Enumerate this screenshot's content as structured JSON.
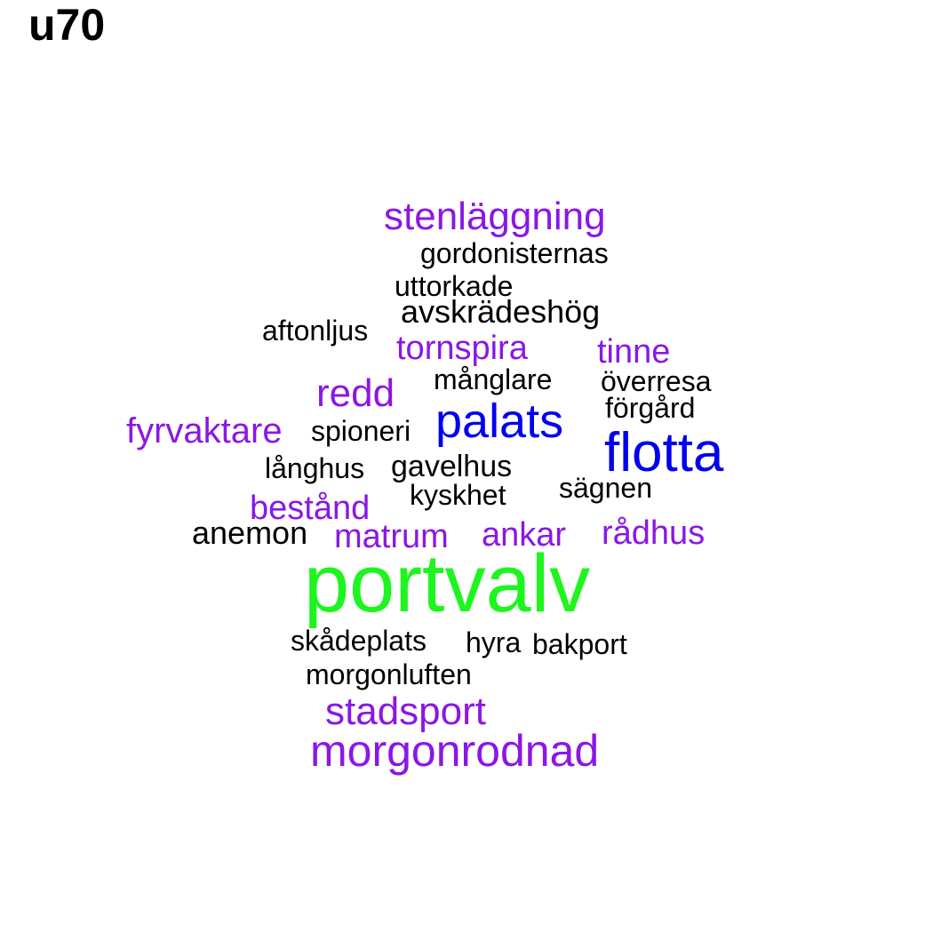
{
  "chart_data": {
    "type": "wordcloud",
    "title": "u70",
    "colors": {
      "black": "#000000",
      "purple": "#8a17e6",
      "blue": "#0000ee",
      "green": "#1ef51e"
    },
    "words": [
      {
        "text": "portvalv",
        "weight": 10,
        "color": "green"
      },
      {
        "text": "flotta",
        "weight": 6,
        "color": "blue"
      },
      {
        "text": "palats",
        "weight": 6,
        "color": "blue"
      },
      {
        "text": "morgonrodnad",
        "weight": 5,
        "color": "purple"
      },
      {
        "text": "stenläggning",
        "weight": 4,
        "color": "purple"
      },
      {
        "text": "redd",
        "weight": 4,
        "color": "purple"
      },
      {
        "text": "stadsport",
        "weight": 4,
        "color": "purple"
      },
      {
        "text": "fyrvaktare",
        "weight": 4,
        "color": "purple"
      },
      {
        "text": "tornspira",
        "weight": 3,
        "color": "purple"
      },
      {
        "text": "tinne",
        "weight": 3,
        "color": "purple"
      },
      {
        "text": "bestånd",
        "weight": 3,
        "color": "purple"
      },
      {
        "text": "matrum",
        "weight": 3,
        "color": "purple"
      },
      {
        "text": "ankar",
        "weight": 3,
        "color": "purple"
      },
      {
        "text": "rådhus",
        "weight": 3,
        "color": "purple"
      },
      {
        "text": "avskrädeshög",
        "weight": 2,
        "color": "black"
      },
      {
        "text": "gavelhus",
        "weight": 2,
        "color": "black"
      },
      {
        "text": "anemon",
        "weight": 2,
        "color": "black"
      },
      {
        "text": "gordonisternas",
        "weight": 1,
        "color": "black"
      },
      {
        "text": "uttorkade",
        "weight": 1,
        "color": "black"
      },
      {
        "text": "aftonljus",
        "weight": 1,
        "color": "black"
      },
      {
        "text": "månglare",
        "weight": 1,
        "color": "black"
      },
      {
        "text": "överresa",
        "weight": 1,
        "color": "black"
      },
      {
        "text": "förgård",
        "weight": 1,
        "color": "black"
      },
      {
        "text": "spioneri",
        "weight": 1,
        "color": "black"
      },
      {
        "text": "långhus",
        "weight": 1,
        "color": "black"
      },
      {
        "text": "sägnen",
        "weight": 1,
        "color": "black"
      },
      {
        "text": "kyskhet",
        "weight": 1,
        "color": "black"
      },
      {
        "text": "skådeplats",
        "weight": 1,
        "color": "black"
      },
      {
        "text": "hyra",
        "weight": 1,
        "color": "black"
      },
      {
        "text": "bakport",
        "weight": 1,
        "color": "black"
      },
      {
        "text": "morgonluften",
        "weight": 1,
        "color": "black"
      }
    ]
  }
}
